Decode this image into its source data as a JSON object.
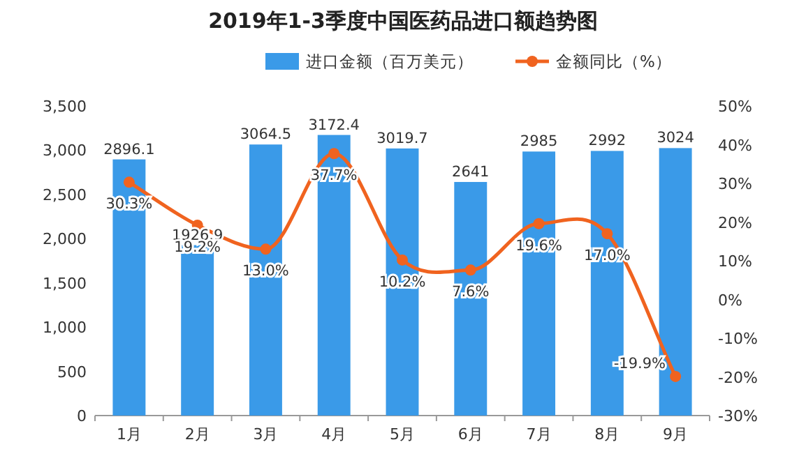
{
  "chart_data": {
    "type": "bar",
    "title": "2019年1-3季度中国医药品进口额趋势图",
    "categories": [
      "1月",
      "2月",
      "3月",
      "4月",
      "5月",
      "6月",
      "7月",
      "8月",
      "9月"
    ],
    "series": [
      {
        "name": "进口金额（百万美元）",
        "color": "#3a9ae8",
        "values": [
          2896.1,
          1926.9,
          3064.5,
          3172.4,
          3019.7,
          2641,
          2985,
          2992,
          3024
        ],
        "value_labels": [
          "2896.1",
          "1926.9",
          "3064.5",
          "3172.4",
          "3019.7",
          "2641",
          "2985",
          "2992",
          "3024"
        ]
      },
      {
        "name": "金额同比（%）",
        "type": "line",
        "axis": "y2",
        "color": "#f0631f",
        "values": [
          30.3,
          19.2,
          13.0,
          37.7,
          10.2,
          7.6,
          19.6,
          17.0,
          -19.9
        ],
        "value_labels": [
          "30.3%",
          "19.2%",
          "13.0%",
          "37.7%",
          "10.2%",
          "7.6%",
          "19.6%",
          "17.0%",
          "-19.9%"
        ]
      }
    ],
    "marker": "circle",
    "legend": "top",
    "ylim": [
      0,
      3500
    ],
    "yticks": [
      0,
      {
        "value": 500,
        "label": "500"
      },
      {
        "value": 1000,
        "label": "1,000"
      },
      {
        "value": 1500,
        "label": "1,500"
      },
      {
        "value": 2000,
        "label": "2,000"
      },
      {
        "value": 2500,
        "label": "2,500"
      },
      {
        "value": 3000,
        "label": "3,000"
      },
      {
        "value": 3500,
        "label": "3,500"
      }
    ],
    "y2lim": [
      -30,
      50
    ],
    "y2ticks": [
      {
        "value": -30,
        "label": "-30%"
      },
      {
        "value": -20,
        "label": "-20%"
      },
      {
        "value": -10,
        "label": "-10%"
      },
      {
        "value": 0,
        "label": "0%"
      },
      {
        "value": 10,
        "label": "10%"
      },
      {
        "value": 20,
        "label": "20%"
      },
      {
        "value": 30,
        "label": "30%"
      },
      {
        "value": 40,
        "label": "40%"
      },
      {
        "value": 50,
        "label": "50%"
      }
    ]
  }
}
